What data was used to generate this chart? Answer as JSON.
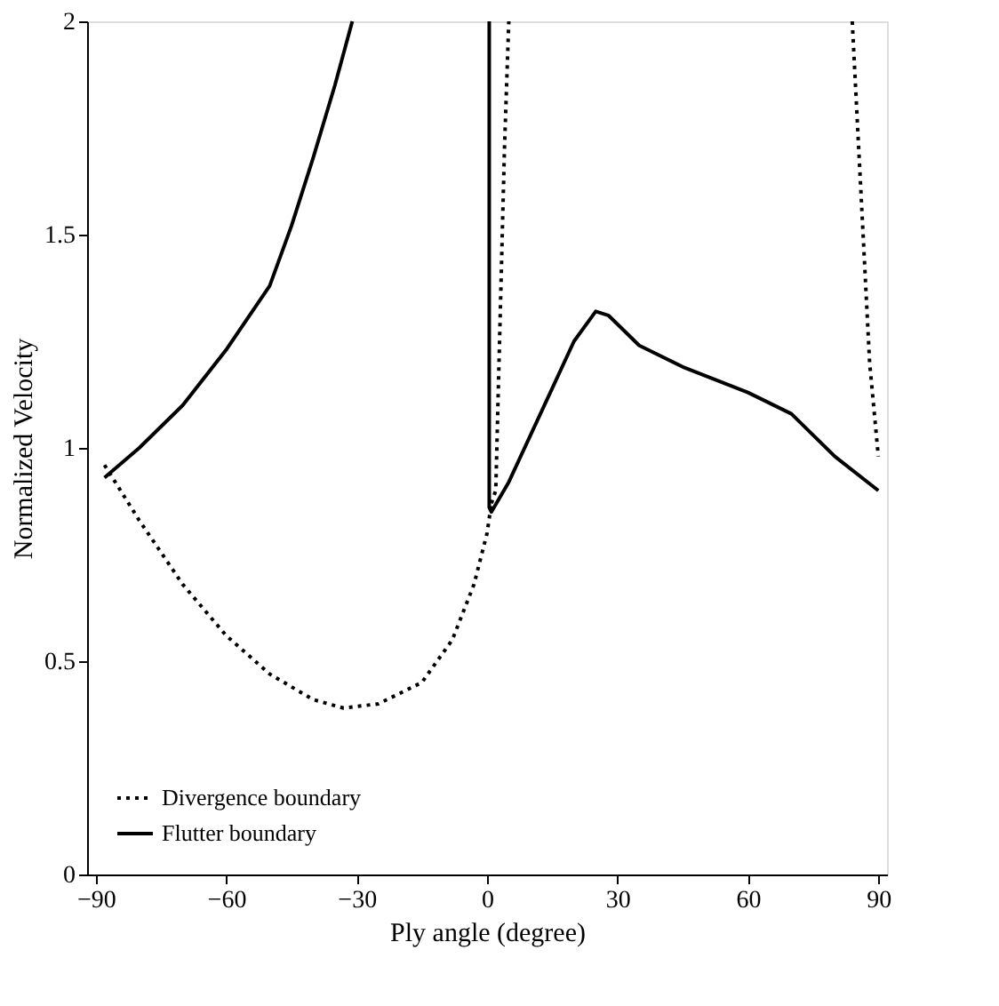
{
  "chart_data": {
    "type": "line",
    "xlabel": "Ply angle (degree)",
    "ylabel": "Normalized Velocity",
    "xlim": [
      -92,
      92
    ],
    "xticks": [
      -90,
      -60,
      -30,
      0,
      30,
      60,
      90
    ],
    "ylim": [
      0,
      2
    ],
    "yticks": [
      0,
      0.5,
      1,
      1.5,
      2
    ],
    "grid": false,
    "legend": "bottom left",
    "marker": "none",
    "series": [
      {
        "name": "Divergence boundary",
        "color": "#000000",
        "line_style": "dotted",
        "x": [
          -88,
          -80,
          -70,
          -60,
          -50,
          -40,
          -33,
          -25,
          -15,
          -8,
          -3,
          0,
          1,
          null,
          1,
          2,
          3,
          4,
          5,
          null,
          84,
          86,
          88,
          90
        ],
        "values": [
          0.96,
          0.83,
          0.68,
          0.56,
          0.47,
          0.41,
          0.39,
          0.4,
          0.45,
          0.55,
          0.68,
          0.8,
          0.87,
          null,
          0.87,
          0.9,
          1.3,
          1.7,
          2.0,
          null,
          2.0,
          1.6,
          1.2,
          0.98
        ]
      },
      {
        "name": "Flutter boundary",
        "color": "#000000",
        "line_style": "solid",
        "x": [
          -88,
          -80,
          -70,
          -60,
          -50,
          -45,
          -40,
          -35,
          -31,
          null,
          0.5,
          0.5,
          1,
          5,
          10,
          15,
          20,
          25,
          28,
          35,
          45,
          60,
          70,
          80,
          90
        ],
        "values": [
          0.93,
          1.0,
          1.1,
          1.23,
          1.38,
          1.52,
          1.68,
          1.85,
          2.0,
          null,
          2.0,
          0.86,
          0.85,
          0.92,
          1.03,
          1.14,
          1.25,
          1.32,
          1.31,
          1.24,
          1.19,
          1.13,
          1.08,
          0.98,
          0.9
        ]
      }
    ]
  }
}
